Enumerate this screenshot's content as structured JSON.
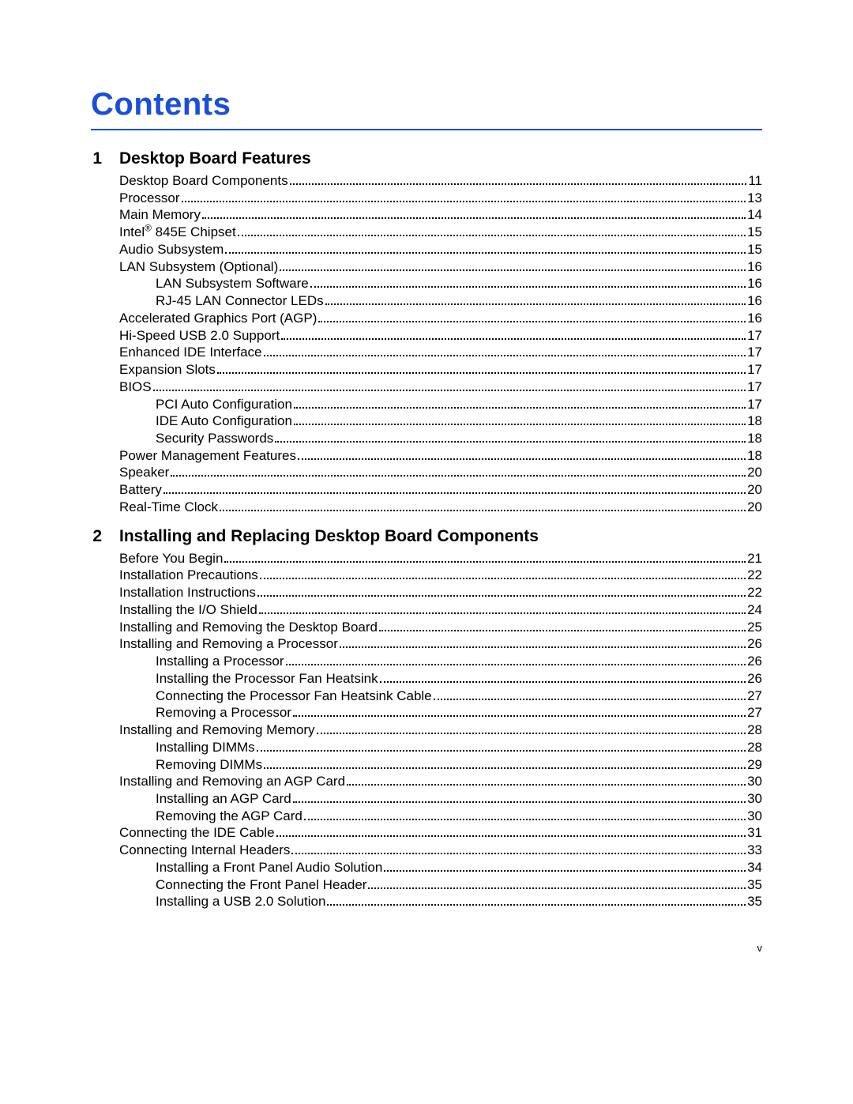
{
  "title": "Contents",
  "page_number": "v",
  "colors": {
    "title_color": "#1a4fd8",
    "rule_color": "#1a4fd8",
    "text_color": "#000000",
    "background": "#ffffff"
  },
  "sections": [
    {
      "num": "1",
      "title": "Desktop Board Features",
      "entries": [
        {
          "label": "Desktop Board Components",
          "page": "11",
          "indent": 0
        },
        {
          "label": "Processor",
          "page": "13",
          "indent": 0
        },
        {
          "label": "Main Memory",
          "page": "14",
          "indent": 0
        },
        {
          "label_html": "Intel<sup>®</sup> 845E Chipset",
          "page": "15",
          "indent": 0
        },
        {
          "label": "Audio Subsystem",
          "page": "15",
          "indent": 0
        },
        {
          "label": "LAN Subsystem (Optional)",
          "page": "16",
          "indent": 0
        },
        {
          "label": "LAN Subsystem Software",
          "page": "16",
          "indent": 1
        },
        {
          "label": "RJ-45 LAN Connector LEDs",
          "page": "16",
          "indent": 1
        },
        {
          "label": "Accelerated Graphics Port (AGP)",
          "page": "16",
          "indent": 0
        },
        {
          "label": "Hi-Speed USB 2.0 Support",
          "page": "17",
          "indent": 0
        },
        {
          "label": "Enhanced IDE Interface",
          "page": "17",
          "indent": 0
        },
        {
          "label": "Expansion Slots",
          "page": "17",
          "indent": 0
        },
        {
          "label": "BIOS",
          "page": "17",
          "indent": 0
        },
        {
          "label": "PCI Auto Configuration",
          "page": "17",
          "indent": 1
        },
        {
          "label": "IDE Auto Configuration",
          "page": "18",
          "indent": 1
        },
        {
          "label": "Security Passwords",
          "page": "18",
          "indent": 1
        },
        {
          "label": "Power Management Features",
          "page": "18",
          "indent": 0
        },
        {
          "label": "Speaker",
          "page": "20",
          "indent": 0
        },
        {
          "label": "Battery",
          "page": "20",
          "indent": 0
        },
        {
          "label": "Real-Time Clock",
          "page": "20",
          "indent": 0
        }
      ]
    },
    {
      "num": "2",
      "title": "Installing and Replacing Desktop Board Components",
      "entries": [
        {
          "label": "Before You Begin",
          "page": "21",
          "indent": 0
        },
        {
          "label": "Installation Precautions",
          "page": "22",
          "indent": 0
        },
        {
          "label": "Installation Instructions",
          "page": "22",
          "indent": 0
        },
        {
          "label": "Installing the I/O Shield",
          "page": "24",
          "indent": 0
        },
        {
          "label": "Installing and Removing the Desktop Board",
          "page": "25",
          "indent": 0
        },
        {
          "label": "Installing and Removing a Processor",
          "page": "26",
          "indent": 0
        },
        {
          "label": "Installing a Processor",
          "page": "26",
          "indent": 1
        },
        {
          "label": "Installing the Processor Fan Heatsink",
          "page": "26",
          "indent": 1
        },
        {
          "label": "Connecting the Processor Fan Heatsink Cable",
          "page": "27",
          "indent": 1
        },
        {
          "label": "Removing a Processor",
          "page": "27",
          "indent": 1
        },
        {
          "label": "Installing and Removing Memory",
          "page": "28",
          "indent": 0
        },
        {
          "label": "Installing DIMMs",
          "page": "28",
          "indent": 1
        },
        {
          "label": "Removing DIMMs",
          "page": "29",
          "indent": 1
        },
        {
          "label": "Installing and Removing an AGP Card",
          "page": "30",
          "indent": 0
        },
        {
          "label": "Installing an AGP Card",
          "page": "30",
          "indent": 1
        },
        {
          "label": "Removing the AGP Card",
          "page": "30",
          "indent": 1
        },
        {
          "label": "Connecting the IDE Cable",
          "page": "31",
          "indent": 0
        },
        {
          "label": "Connecting Internal Headers",
          "page": "33",
          "indent": 0
        },
        {
          "label": "Installing a Front Panel Audio Solution",
          "page": "34",
          "indent": 1
        },
        {
          "label": "Connecting the Front Panel Header",
          "page": "35",
          "indent": 1
        },
        {
          "label": "Installing a USB 2.0 Solution",
          "page": "35",
          "indent": 1
        }
      ]
    }
  ]
}
